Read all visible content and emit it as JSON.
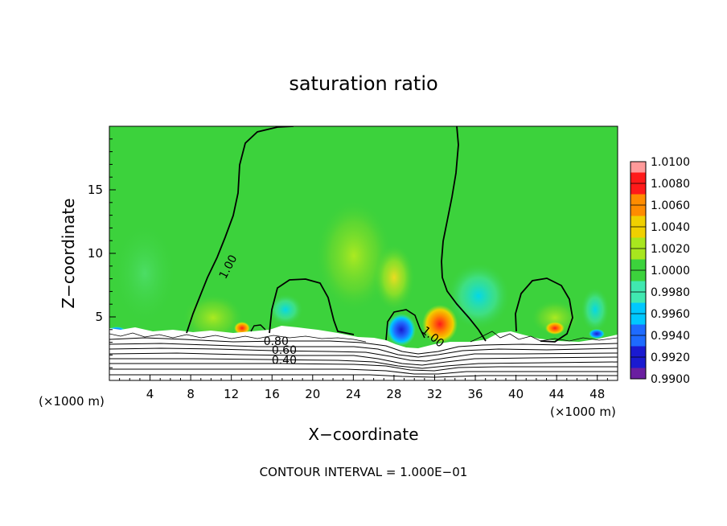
{
  "chart_data": {
    "type": "heatmap",
    "title": "saturation ratio",
    "xlabel": "X−coordinate",
    "ylabel": "Z−coordinate",
    "x_unit_left": "(×1000 m)",
    "x_unit_right": "(×1000 m)",
    "xlim": [
      0,
      50
    ],
    "ylim": [
      0,
      20
    ],
    "x_ticks": [
      4,
      8,
      12,
      16,
      20,
      24,
      28,
      32,
      36,
      40,
      44,
      48
    ],
    "y_ticks": [
      5,
      10,
      15
    ],
    "footer": "CONTOUR INTERVAL = 1.000E−01",
    "colorbar": {
      "levels": [
        "0.9900",
        "0.9920",
        "0.9940",
        "0.9960",
        "0.9980",
        "1.0000",
        "1.0020",
        "1.0040",
        "1.0060",
        "1.0080",
        "1.0100"
      ],
      "colors": [
        "#6a1fa0",
        "#1a1ad0",
        "#1e6bff",
        "#00c8ff",
        "#40e8b0",
        "#3cd23c",
        "#a8e61e",
        "#f0d000",
        "#ff8c00",
        "#ff1a1a",
        "#ff9a9a"
      ]
    },
    "contour_labels": [
      {
        "text": "1.00",
        "x": 12.0,
        "z": 8.8,
        "angle": -62
      },
      {
        "text": "1.00",
        "x": 31.6,
        "z": 3.2,
        "angle": 40
      },
      {
        "text": "0.80",
        "x": 16.4,
        "z": 2.8,
        "angle": 0
      },
      {
        "text": "0.60",
        "x": 17.2,
        "z": 2.1,
        "angle": 0
      },
      {
        "text": "0.40",
        "x": 17.2,
        "z": 1.3,
        "angle": 0
      }
    ],
    "features": {
      "cloud_base_z": 3.8,
      "terrain_hill_x": 30.5,
      "hot_spots": [
        {
          "x": 32.0,
          "z": 4.3,
          "value": 1.0085
        },
        {
          "x": 13.0,
          "z": 4.0,
          "value": 1.006
        },
        {
          "x": 43.8,
          "z": 4.1,
          "value": 1.006
        }
      ],
      "cold_spots": [
        {
          "x": 28.6,
          "z": 3.9,
          "value": 0.991
        },
        {
          "x": 34.5,
          "z": 6.5,
          "value": 0.996
        }
      ]
    }
  }
}
